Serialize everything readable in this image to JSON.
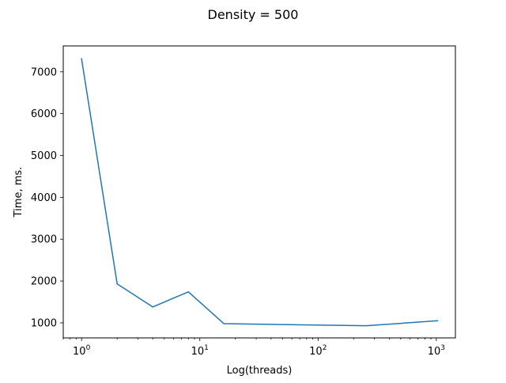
{
  "chart_data": {
    "type": "line",
    "title": "Density = 500",
    "xlabel": "Log(threads)",
    "ylabel": "Time, ms.",
    "x_scale": "log",
    "xlim": [
      0.7,
      1450
    ],
    "ylim": [
      640,
      7620
    ],
    "x_ticks": [
      {
        "value": 1,
        "base": "10",
        "exp": "0"
      },
      {
        "value": 10,
        "base": "10",
        "exp": "1"
      },
      {
        "value": 100,
        "base": "10",
        "exp": "2"
      },
      {
        "value": 1000,
        "base": "10",
        "exp": "3"
      }
    ],
    "y_ticks": [
      1000,
      2000,
      3000,
      4000,
      5000,
      6000,
      7000
    ],
    "grid": false,
    "color": "#1f77b4",
    "series": [
      {
        "x": [
          1,
          2,
          4,
          8,
          16,
          256,
          1024
        ],
        "y": [
          7310,
          1930,
          1380,
          1740,
          980,
          930,
          1050
        ]
      }
    ]
  }
}
